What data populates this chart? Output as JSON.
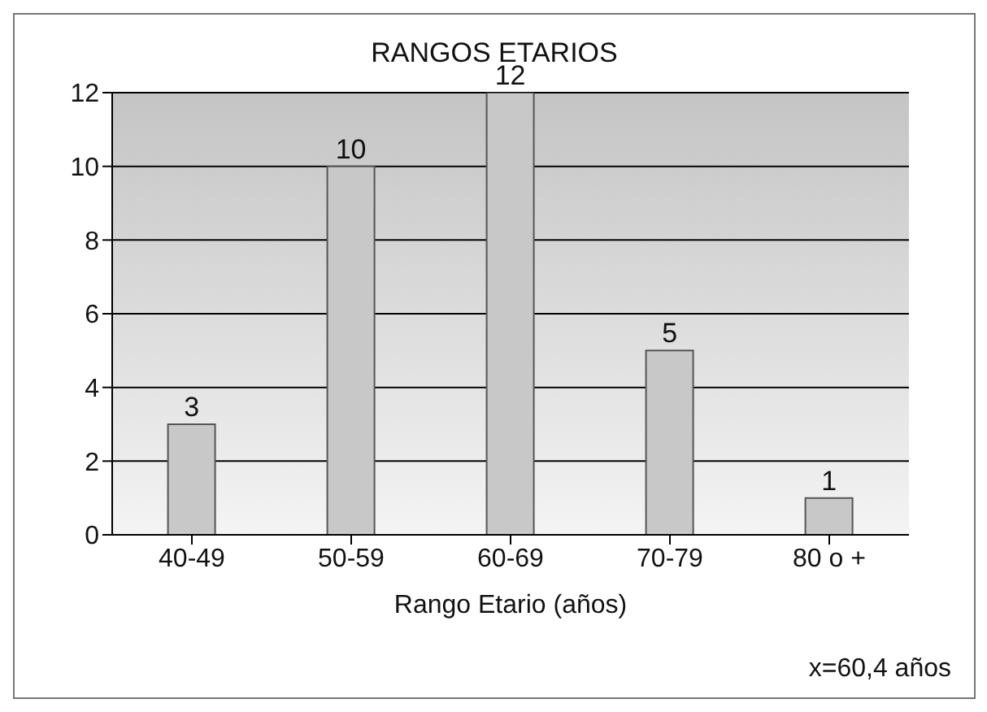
{
  "chart_data": {
    "type": "bar",
    "title": "RANGOS ETARIOS",
    "xlabel": "Rango Etario (años)",
    "categories": [
      "40-49",
      "50-59",
      "60-69",
      "70-79",
      "80 o +"
    ],
    "values": [
      3,
      10,
      12,
      5,
      1
    ],
    "color": "#c8c8c8",
    "ylim": [
      0,
      12
    ],
    "yticks": [
      0,
      2,
      4,
      6,
      8,
      10,
      12
    ],
    "grid": "y",
    "data_labels": true,
    "annotations": [
      "x=60,4 años"
    ]
  }
}
